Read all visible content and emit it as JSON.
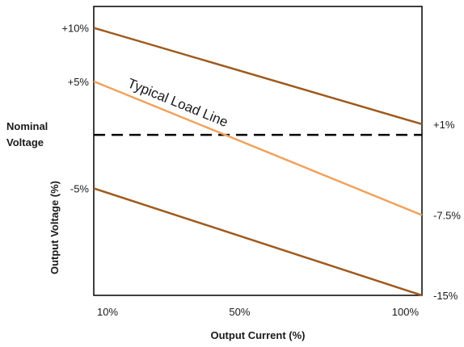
{
  "chart_data": {
    "type": "line",
    "xlabel": "Output Current (%)",
    "ylabel": "Output Voltage (%)",
    "x_ticks": [
      {
        "value": 10,
        "label": "10%"
      },
      {
        "value": 50,
        "label": "50%"
      },
      {
        "value": 100,
        "label": "100%"
      }
    ],
    "xlim": [
      10,
      100
    ],
    "ylim": [
      -15,
      12
    ],
    "nominal_label": [
      "Nominal",
      "Voltage"
    ],
    "nominal_value": 0,
    "annotation": "Typical Load Line",
    "grid": false,
    "series": [
      {
        "role": "upper",
        "color": "#9e5a1e",
        "x": [
          10,
          100
        ],
        "y": [
          10,
          1
        ],
        "left_label": "+10%",
        "right_label": "+1%"
      },
      {
        "role": "typical",
        "color": "#f0a35e",
        "x": [
          10,
          100
        ],
        "y": [
          5,
          -7.5
        ],
        "left_label": "+5%",
        "right_label": "-7.5%"
      },
      {
        "role": "lower",
        "color": "#9e5a1e",
        "x": [
          10,
          100
        ],
        "y": [
          -5,
          -15
        ],
        "left_label": "-5%",
        "right_label": "-15%"
      }
    ]
  }
}
